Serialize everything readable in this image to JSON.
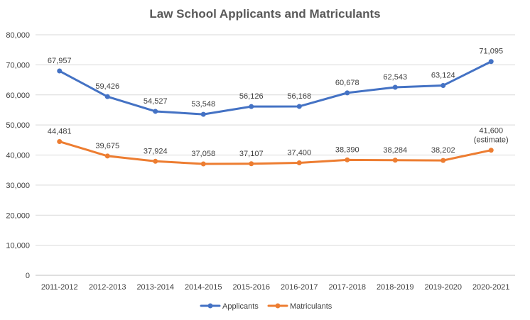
{
  "chart_data": {
    "type": "line",
    "title": "Law School Applicants and Matriculants",
    "xlabel": "",
    "ylabel": "",
    "categories": [
      "2011-2012",
      "2012-2013",
      "2013-2014",
      "2014-2015",
      "2015-2016",
      "2016-2017",
      "2017-2018",
      "2018-2019",
      "2019-2020",
      "2020-2021"
    ],
    "ylim": [
      0,
      80000
    ],
    "yticks": [
      0,
      10000,
      20000,
      30000,
      40000,
      50000,
      60000,
      70000,
      80000
    ],
    "ytick_labels": [
      "0",
      "10,000",
      "20,000",
      "30,000",
      "40,000",
      "50,000",
      "60,000",
      "70,000",
      "80,000"
    ],
    "grid": true,
    "legend_position": "bottom",
    "series": [
      {
        "name": "Applicants",
        "color": "#4472C4",
        "values": [
          67957,
          59426,
          54527,
          53548,
          56126,
          56168,
          60678,
          62543,
          63124,
          71095
        ],
        "labels": [
          "67,957",
          "59,426",
          "54,527",
          "53,548",
          "56,126",
          "56,168",
          "60,678",
          "62,543",
          "63,124",
          "71,095"
        ]
      },
      {
        "name": "Matriculants",
        "color": "#ED7D31",
        "values": [
          44481,
          39675,
          37924,
          37058,
          37107,
          37400,
          38390,
          38284,
          38202,
          41600
        ],
        "labels": [
          "44,481",
          "39,675",
          "37,924",
          "37,058",
          "37,107",
          "37,400",
          "38,390",
          "38,284",
          "38,202",
          "41,600\n(estimate)"
        ]
      }
    ]
  }
}
